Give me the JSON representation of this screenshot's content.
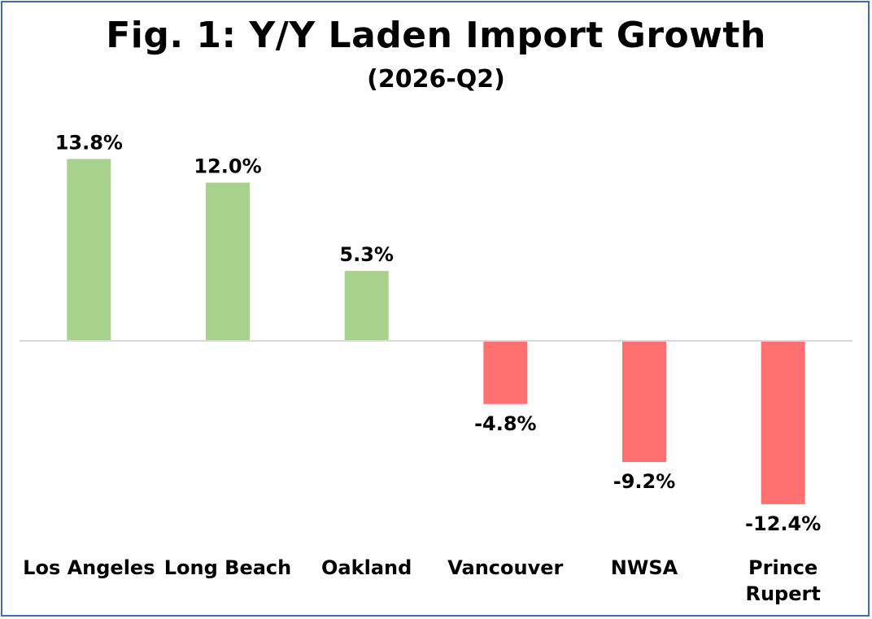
{
  "chart_data": {
    "type": "bar",
    "title": "Fig. 1: Y/Y Laden Import Growth",
    "subtitle": "(2026-Q2)",
    "categories": [
      "Los Angeles",
      "Long Beach",
      "Oakland",
      "Vancouver",
      "NWSA",
      "Prince Rupert"
    ],
    "values": [
      13.8,
      12.0,
      5.3,
      -4.8,
      -9.2,
      -12.4
    ],
    "data_labels": [
      "13.8%",
      "12.0%",
      "5.3%",
      "-4.8%",
      "-9.2%",
      "-12.4%"
    ],
    "xlabel": "",
    "ylabel": "",
    "ylim": [
      -13,
      15
    ],
    "grid": false,
    "legend": "none",
    "colors": {
      "positive": "#a9d18e",
      "negative": "#ff7171",
      "axis": "#d9d9d9",
      "border": "#3a6fb0"
    }
  }
}
